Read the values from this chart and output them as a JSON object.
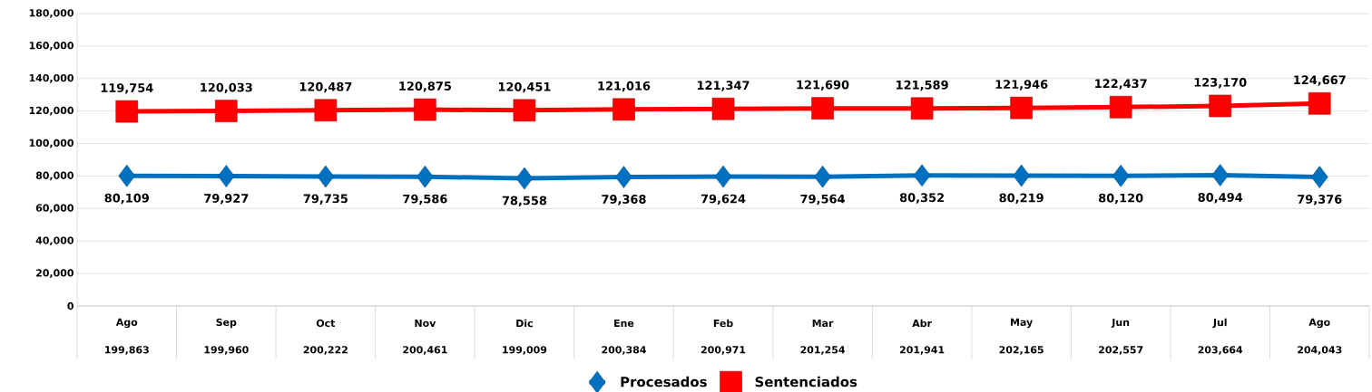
{
  "chart_data": {
    "type": "line",
    "categories": [
      "Ago",
      "Sep",
      "Oct",
      "Nov",
      "Dic",
      "Ene",
      "Feb",
      "Mar",
      "Abr",
      "May",
      "Jun",
      "Jul",
      "Ago"
    ],
    "series": [
      {
        "name": "Procesados",
        "color": "#0070c0",
        "marker": "diamond",
        "values": [
          80109,
          79927,
          79735,
          79586,
          78558,
          79368,
          79624,
          79564,
          80352,
          80219,
          80120,
          80494,
          79376
        ],
        "value_labels": [
          "80,109",
          "79,927",
          "79,735",
          "79,586",
          "78,558",
          "79,368",
          "79,624",
          "79,564",
          "80,352",
          "80,219",
          "80,120",
          "80,494",
          "79,376"
        ]
      },
      {
        "name": "Sentenciados",
        "color": "#ff0000",
        "marker": "square",
        "values": [
          119754,
          120033,
          120487,
          120875,
          120451,
          121016,
          121347,
          121690,
          121589,
          121946,
          122437,
          123170,
          124667
        ],
        "value_labels": [
          "119,754",
          "120,033",
          "120,487",
          "120,875",
          "120,451",
          "121,016",
          "121,347",
          "121,690",
          "121,589",
          "121,946",
          "122,437",
          "123,170",
          "124,667"
        ]
      }
    ],
    "totals": [
      "199,863",
      "199,960",
      "200,222",
      "200,461",
      "199,009",
      "200,384",
      "200,971",
      "201,254",
      "201,941",
      "202,165",
      "202,557",
      "203,664",
      "204,043"
    ],
    "ylim": [
      0,
      180000
    ],
    "yticks": [
      {
        "value": 0,
        "label": "0"
      },
      {
        "value": 20000,
        "label": "20,000"
      },
      {
        "value": 40000,
        "label": "40,000"
      },
      {
        "value": 60000,
        "label": "60,000"
      },
      {
        "value": 80000,
        "label": "80,000"
      },
      {
        "value": 100000,
        "label": "100,000"
      },
      {
        "value": 120000,
        "label": "120,000"
      },
      {
        "value": 140000,
        "label": "140,000"
      },
      {
        "value": 160000,
        "label": "160,000"
      },
      {
        "value": 180000,
        "label": "180,000"
      }
    ],
    "grid": "y",
    "legend": "bottom"
  }
}
